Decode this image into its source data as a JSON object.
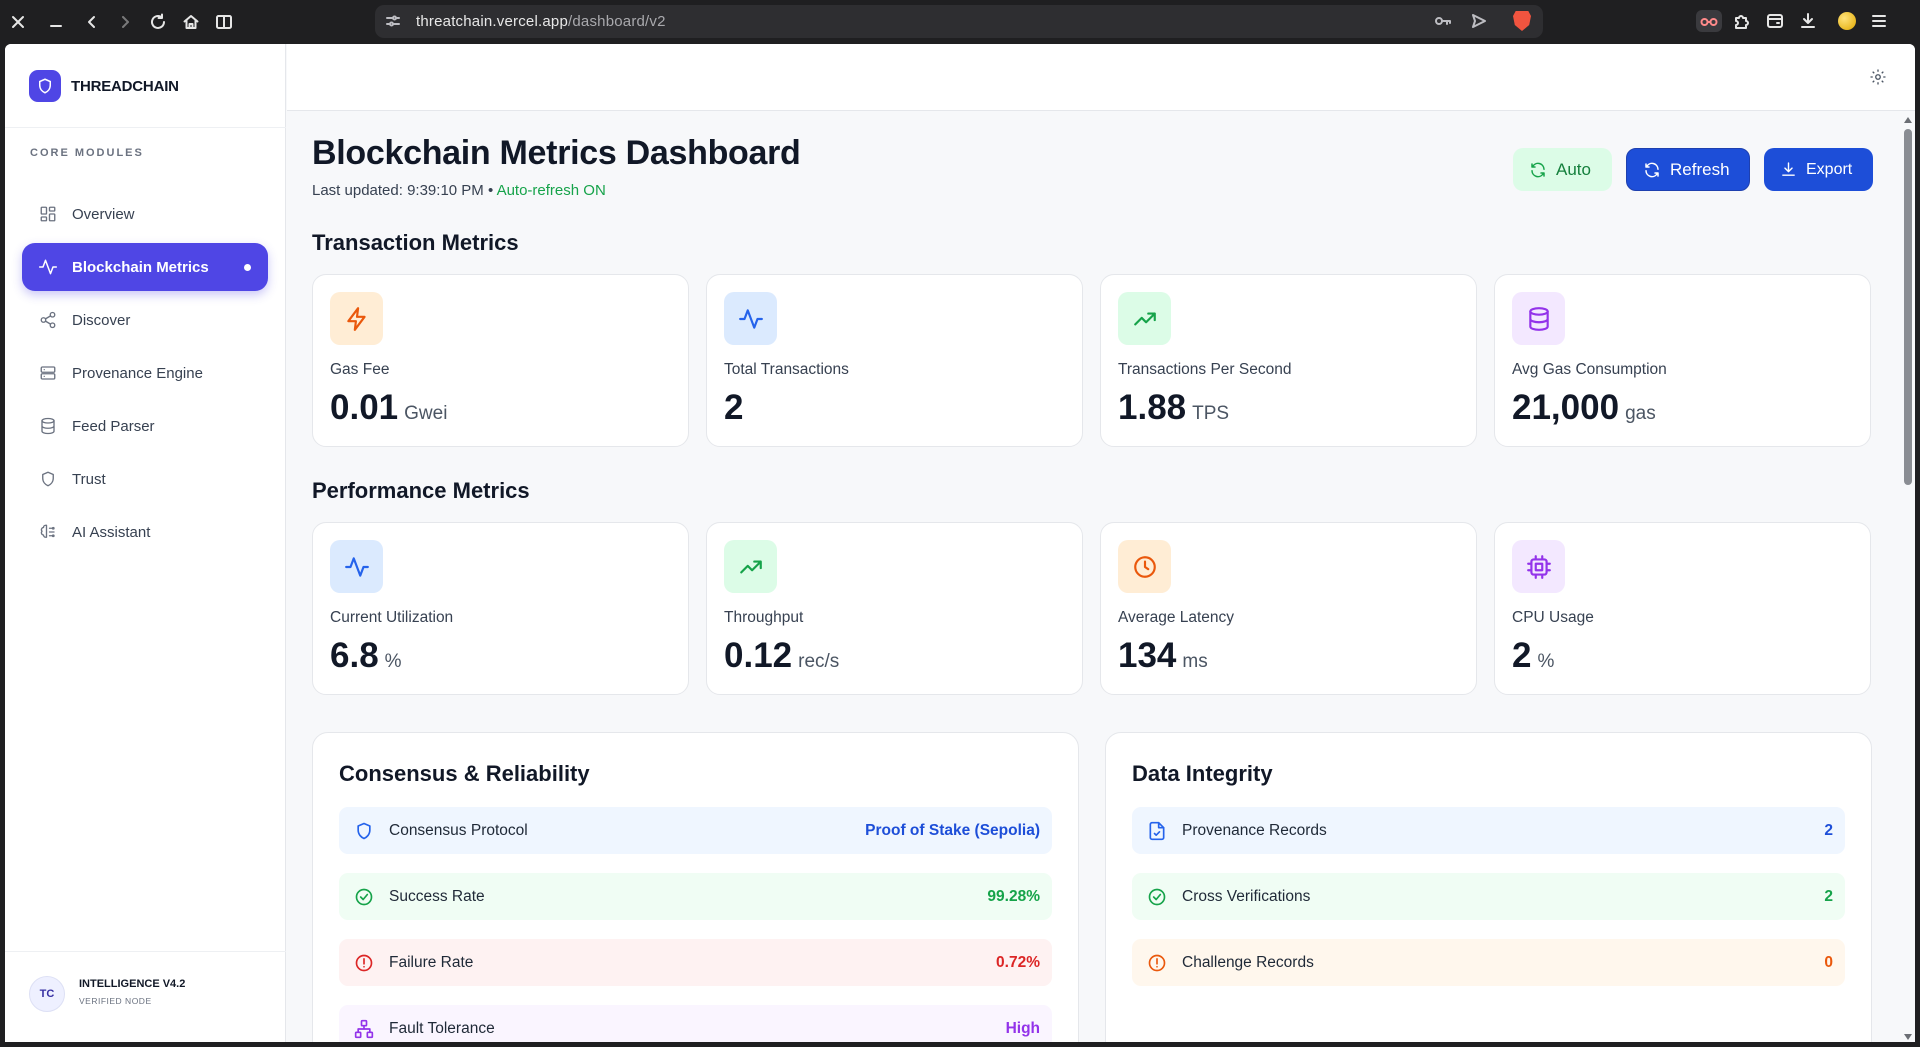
{
  "browser": {
    "url_host": "threatchain.vercel.app",
    "url_path": "/dashboard/v2"
  },
  "sidebar": {
    "brand": "THREADCHAIN",
    "section_label": "CORE MODULES",
    "items": [
      {
        "label": "Overview",
        "icon": "grid-icon"
      },
      {
        "label": "Blockchain Metrics",
        "icon": "activity-icon",
        "active": true
      },
      {
        "label": "Discover",
        "icon": "share-icon"
      },
      {
        "label": "Provenance Engine",
        "icon": "server-icon"
      },
      {
        "label": "Feed Parser",
        "icon": "database-icon"
      },
      {
        "label": "Trust",
        "icon": "shield-icon"
      },
      {
        "label": "AI Assistant",
        "icon": "brain-icon"
      }
    ],
    "footer": {
      "avatar": "TC",
      "title": "INTELLIGENCE V4.2",
      "subtitle": "VERIFIED NODE"
    }
  },
  "header": {
    "title": "Blockchain Metrics Dashboard",
    "last_updated_label": "Last updated: 9:39:10 PM",
    "separator": "•",
    "auto_refresh_status": "Auto-refresh ON",
    "buttons": {
      "auto": "Auto",
      "refresh": "Refresh",
      "export": "Export"
    }
  },
  "transaction_metrics": {
    "title": "Transaction Metrics",
    "cards": [
      {
        "label": "Gas Fee",
        "value": "0.01",
        "unit": "Gwei",
        "icon": "zap-icon",
        "color": "#ea580c"
      },
      {
        "label": "Total Transactions",
        "value": "2",
        "unit": "",
        "icon": "activity-icon",
        "color": "#2563eb"
      },
      {
        "label": "Transactions Per Second",
        "value": "1.88",
        "unit": "TPS",
        "icon": "trending-up-icon",
        "color": "#16a34a"
      },
      {
        "label": "Avg Gas Consumption",
        "value": "21,000",
        "unit": "gas",
        "icon": "database-icon",
        "color": "#9333ea"
      }
    ]
  },
  "performance_metrics": {
    "title": "Performance Metrics",
    "cards": [
      {
        "label": "Current Utilization",
        "value": "6.8",
        "unit": "%",
        "icon": "activity-icon",
        "color": "#2563eb"
      },
      {
        "label": "Throughput",
        "value": "0.12",
        "unit": "rec/s",
        "icon": "trending-up-icon",
        "color": "#16a34a"
      },
      {
        "label": "Average Latency",
        "value": "134",
        "unit": "ms",
        "icon": "clock-icon",
        "color": "#ea580c"
      },
      {
        "label": "CPU Usage",
        "value": "2",
        "unit": "%",
        "icon": "cpu-icon",
        "color": "#9333ea"
      }
    ]
  },
  "consensus": {
    "title": "Consensus & Reliability",
    "rows": [
      {
        "label": "Consensus Protocol",
        "value": "Proof of Stake (Sepolia)",
        "icon": "shield-icon",
        "color": "#1d4ed8"
      },
      {
        "label": "Success Rate",
        "value": "99.28%",
        "icon": "check-circle-icon",
        "color": "#16a34a"
      },
      {
        "label": "Failure Rate",
        "value": "0.72%",
        "icon": "alert-circle-icon",
        "color": "#dc2626"
      },
      {
        "label": "Fault Tolerance",
        "value": "High",
        "icon": "network-icon",
        "color": "#9333ea"
      }
    ]
  },
  "data_integrity": {
    "title": "Data Integrity",
    "rows": [
      {
        "label": "Provenance Records",
        "value": "2",
        "icon": "file-check-icon",
        "color": "#1d4ed8"
      },
      {
        "label": "Cross Verifications",
        "value": "2",
        "icon": "check-circle-icon",
        "color": "#16a34a"
      },
      {
        "label": "Challenge Records",
        "value": "0",
        "icon": "alert-circle-icon",
        "color": "#ea580c"
      }
    ]
  }
}
